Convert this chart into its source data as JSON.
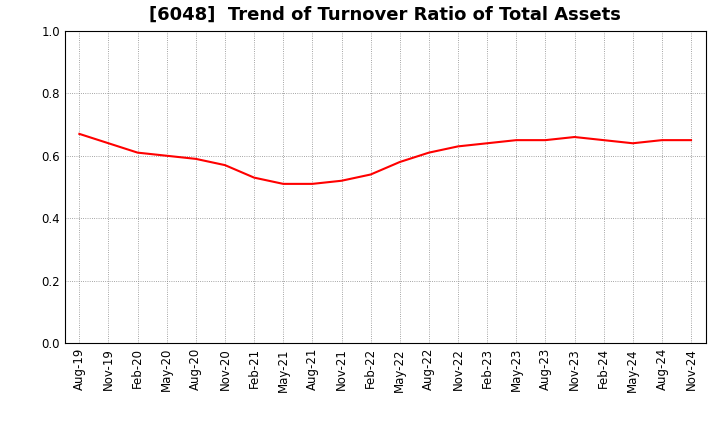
{
  "title": "[6048]  Trend of Turnover Ratio of Total Assets",
  "x_labels": [
    "Aug-19",
    "Nov-19",
    "Feb-20",
    "May-20",
    "Aug-20",
    "Nov-20",
    "Feb-21",
    "May-21",
    "Aug-21",
    "Nov-21",
    "Feb-22",
    "May-22",
    "Aug-22",
    "Nov-22",
    "Feb-23",
    "May-23",
    "Aug-23",
    "Nov-23",
    "Feb-24",
    "May-24",
    "Aug-24",
    "Nov-24"
  ],
  "y_values": [
    0.67,
    0.64,
    0.61,
    0.6,
    0.59,
    0.57,
    0.53,
    0.51,
    0.51,
    0.52,
    0.54,
    0.58,
    0.61,
    0.63,
    0.64,
    0.65,
    0.65,
    0.66,
    0.65,
    0.64,
    0.65,
    0.65
  ],
  "line_color": "#FF0000",
  "line_width": 1.5,
  "ylim": [
    0.0,
    1.0
  ],
  "yticks": [
    0.0,
    0.2,
    0.4,
    0.6,
    0.8,
    1.0
  ],
  "grid_color": "#888888",
  "background_color": "#ffffff",
  "title_fontsize": 13,
  "tick_fontsize": 8.5
}
